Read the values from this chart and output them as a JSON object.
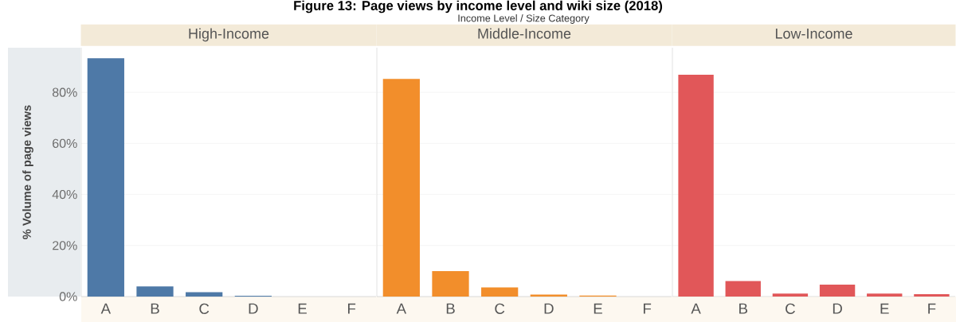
{
  "chart_data": [
    {
      "type": "bar",
      "title": "Figure 13: Page views by income level and wiki size (2018)",
      "annotations": [
        "Income Level / Size Category"
      ],
      "subtitle": "High-Income",
      "ylabel": "% Volume of page views",
      "categories": [
        "A",
        "B",
        "C",
        "D",
        "E",
        "F"
      ],
      "values": [
        93.4,
        4.0,
        1.7,
        0.3,
        0,
        0
      ],
      "color": "#4e79a7",
      "ylim": [
        0,
        97.5
      ],
      "yticks": [
        {
          "value": 0,
          "label": "0%"
        },
        {
          "value": 20,
          "label": "20%"
        },
        {
          "value": 40,
          "label": "40%"
        },
        {
          "value": 60,
          "label": "60%"
        },
        {
          "value": 80,
          "label": "80%"
        }
      ],
      "grid": "y"
    },
    {
      "type": "bar",
      "subtitle": "Middle-Income",
      "categories": [
        "A",
        "B",
        "C",
        "D",
        "E",
        "F"
      ],
      "values": [
        85.3,
        10.0,
        3.6,
        0.8,
        0.4,
        0
      ],
      "color": "#f28e2b",
      "ylim": [
        0,
        97.5
      ],
      "yticks": [
        0,
        20,
        40,
        60,
        80
      ],
      "grid": "y",
      "tick_labels": "x"
    },
    {
      "type": "bar",
      "subtitle": "Low-Income",
      "categories": [
        "A",
        "B",
        "C",
        "D",
        "E",
        "F"
      ],
      "values": [
        86.9,
        6.1,
        1.2,
        4.7,
        1.2,
        0.9
      ],
      "color": "#e15759",
      "ylim": [
        0,
        97.5
      ],
      "yticks": [
        0,
        20,
        40,
        60,
        80
      ],
      "grid": "y",
      "tick_labels": "x"
    }
  ]
}
